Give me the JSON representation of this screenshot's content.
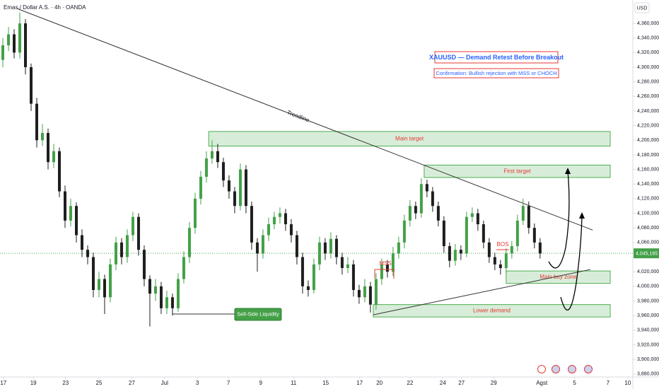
{
  "chart_data": {
    "type": "candlestick",
    "symbol": "Emas / Dollar A.S. · 4h · OANDA",
    "currency": "USD",
    "title": "XAUUSD — Demand Retest Before Breakout",
    "subtitle": "Confirmation: Bullish rejection with MSS or CHOCH",
    "up_color": "#43a047",
    "down_color": "#1e1e1e",
    "open": [
      4310000,
      4330000,
      4345000,
      4320000,
      4360000,
      4300000,
      4250000,
      4200000,
      4210000,
      4170000,
      4185000,
      4130000,
      4090000,
      4110000,
      4070000,
      4050000,
      4040000,
      3995000,
      4010000,
      3985000,
      4030000,
      4060000,
      4040000,
      4070000,
      4095000,
      4050000,
      4010000,
      3990000,
      4000000,
      3970000,
      3985000,
      3970000,
      4010000,
      4040000,
      4080000,
      4120000,
      4150000,
      4175000,
      4185000,
      4170000,
      4145000,
      4130000,
      4110000,
      4160000,
      4110000,
      4060000,
      4045000,
      4070000,
      4085000,
      4095000,
      4100000,
      4085000,
      4070000,
      4040000,
      4000000,
      3995000,
      4030000,
      4060000,
      4045000,
      4065000,
      4040000,
      4025000,
      4030000,
      3995000,
      3985000,
      4000000,
      3975000,
      4010000,
      4030000,
      4020000,
      4045000,
      4060000,
      4090000,
      4110000,
      4100000,
      4140000,
      4130000,
      4110000,
      4090000,
      4055000,
      4035000,
      4050000,
      4045000,
      4095000,
      4100000,
      4085000,
      4060000,
      4040000,
      4030000,
      4025000,
      4045000,
      4055000,
      4090000,
      4110000,
      4080000,
      4060000
    ],
    "high": [
      4340000,
      4355000,
      4352000,
      4375000,
      4366000,
      4305000,
      4258000,
      4222000,
      4216000,
      4195000,
      4190000,
      4138000,
      4120000,
      4115000,
      4078000,
      4056000,
      4046000,
      4020000,
      4016000,
      4038000,
      4068000,
      4066000,
      4078000,
      4102000,
      4100000,
      4056000,
      4015000,
      4010000,
      4006000,
      3994000,
      3990000,
      4018000,
      4048000,
      4088000,
      4128000,
      4158000,
      4185000,
      4200000,
      4195000,
      4176000,
      4152000,
      4136000,
      4168000,
      4166000,
      4116000,
      4066000,
      4078000,
      4094000,
      4102000,
      4108000,
      4106000,
      4092000,
      4076000,
      4046000,
      4008000,
      4038000,
      4068000,
      4066000,
      4074000,
      4070000,
      4046000,
      4040000,
      4036000,
      4002000,
      4010000,
      4006000,
      4018000,
      4038000,
      4036000,
      4054000,
      4068000,
      4098000,
      4118000,
      4116000,
      4148000,
      4146000,
      4136000,
      4116000,
      4096000,
      4060000,
      4058000,
      4056000,
      4102000,
      4108000,
      4106000,
      4090000,
      4066000,
      4046000,
      4036000,
      4052000,
      4062000,
      4098000,
      4120000,
      4116000,
      4086000,
      4066000
    ],
    "low": [
      4300000,
      4322000,
      4312000,
      4312000,
      4290000,
      4240000,
      4190000,
      4192000,
      4160000,
      4162000,
      4122000,
      4080000,
      4082000,
      4060000,
      4040000,
      4030000,
      3985000,
      3985000,
      3962000,
      3978000,
      4022000,
      4030000,
      4032000,
      4062000,
      4042000,
      4000000,
      3945000,
      3980000,
      3962000,
      3962000,
      3960000,
      3965000,
      4004000,
      4032000,
      4072000,
      4112000,
      4142000,
      4168000,
      4162000,
      4136000,
      4120000,
      4100000,
      4104000,
      4100000,
      4050000,
      4020000,
      4038000,
      4062000,
      4078000,
      4086000,
      4076000,
      4060000,
      4030000,
      3990000,
      3986000,
      3990000,
      4022000,
      4036000,
      4038000,
      4030000,
      4016000,
      4018000,
      3986000,
      3976000,
      3978000,
      3964000,
      3968000,
      4002000,
      4012000,
      4014000,
      4038000,
      4052000,
      4082000,
      4092000,
      4094000,
      4122000,
      4102000,
      4082000,
      4046000,
      4026000,
      4028000,
      4036000,
      4040000,
      4088000,
      4076000,
      4052000,
      4032000,
      4022000,
      4016000,
      4018000,
      4038000,
      4048000,
      4084000,
      4072000,
      4052000,
      4038000
    ],
    "close": [
      4330000,
      4345000,
      4320000,
      4360000,
      4300000,
      4250000,
      4200000,
      4210000,
      4170000,
      4185000,
      4130000,
      4090000,
      4110000,
      4070000,
      4050000,
      4040000,
      3995000,
      4010000,
      3985000,
      4030000,
      4060000,
      4040000,
      4070000,
      4095000,
      4050000,
      4010000,
      3990000,
      4000000,
      3970000,
      3985000,
      3970000,
      4010000,
      4040000,
      4080000,
      4120000,
      4150000,
      4175000,
      4185000,
      4170000,
      4145000,
      4130000,
      4110000,
      4160000,
      4110000,
      4060000,
      4045000,
      4070000,
      4085000,
      4095000,
      4100000,
      4085000,
      4070000,
      4040000,
      4000000,
      3995000,
      4030000,
      4060000,
      4045000,
      4065000,
      4040000,
      4025000,
      4030000,
      3995000,
      3985000,
      4000000,
      3975000,
      4010000,
      4030000,
      4020000,
      4045000,
      4060000,
      4090000,
      4110000,
      4100000,
      4140000,
      4130000,
      4110000,
      4090000,
      4055000,
      4035000,
      4050000,
      4045000,
      4095000,
      4100000,
      4085000,
      4060000,
      4040000,
      4030000,
      4025000,
      4045000,
      4055000,
      4090000,
      4110000,
      4080000,
      4060000,
      4045000
    ],
    "xlim": [
      -0.5,
      111.4
    ],
    "xticks": [
      {
        "value": 0.1,
        "label": "17"
      },
      {
        "value": 5.4,
        "label": "19"
      },
      {
        "value": 11.1,
        "label": "23"
      },
      {
        "value": 17,
        "label": "25"
      },
      {
        "value": 22.8,
        "label": "27"
      },
      {
        "value": 28.6,
        "label": "Jul"
      },
      {
        "value": 34.4,
        "label": "3"
      },
      {
        "value": 39.9,
        "label": "7"
      },
      {
        "value": 45.6,
        "label": "9"
      },
      {
        "value": 51.4,
        "label": "11"
      },
      {
        "value": 57.1,
        "label": "15"
      },
      {
        "value": 63.1,
        "label": "17"
      },
      {
        "value": 66.6,
        "label": "20"
      },
      {
        "value": 72,
        "label": "22"
      },
      {
        "value": 77.8,
        "label": "24"
      },
      {
        "value": 81.1,
        "label": "27"
      },
      {
        "value": 86.8,
        "label": "29"
      },
      {
        "value": 95.3,
        "label": "Agst"
      },
      {
        "value": 101.1,
        "label": "5"
      },
      {
        "value": 107,
        "label": "7"
      },
      {
        "value": 110.5,
        "label": "10"
      }
    ],
    "ylim": [
      3872000,
      4392000
    ],
    "yticks": [
      {
        "value": 4360000,
        "label": "4,360,000"
      },
      {
        "value": 4340000,
        "label": "4,340,000"
      },
      {
        "value": 4320000,
        "label": "4,320,000"
      },
      {
        "value": 4300000,
        "label": "4,300,000"
      },
      {
        "value": 4280000,
        "label": "4,280,000"
      },
      {
        "value": 4260000,
        "label": "4,260,000"
      },
      {
        "value": 4240000,
        "label": "4,240,000"
      },
      {
        "value": 4220000,
        "label": "4,220,000"
      },
      {
        "value": 4200000,
        "label": "4,200,000"
      },
      {
        "value": 4180000,
        "label": "4,180,000"
      },
      {
        "value": 4160000,
        "label": "4,160,000"
      },
      {
        "value": 4140000,
        "label": "4,140,000"
      },
      {
        "value": 4120000,
        "label": "4,120,000"
      },
      {
        "value": 4100000,
        "label": "4,100,000"
      },
      {
        "value": 4080000,
        "label": "4,080,000"
      },
      {
        "value": 4060000,
        "label": "4,060,000"
      },
      {
        "value": 4020000,
        "label": "4,020,000"
      },
      {
        "value": 4000000,
        "label": "4,000,000"
      },
      {
        "value": 3980000,
        "label": "3,980,000"
      },
      {
        "value": 3960000,
        "label": "3,960,000"
      },
      {
        "value": 3940000,
        "label": "3,940,000"
      },
      {
        "value": 3920000,
        "label": "3,920,000"
      },
      {
        "value": 3900000,
        "label": "3,900,000"
      },
      {
        "value": 3880000,
        "label": "3,880,000"
      }
    ],
    "last_price": {
      "value": 4045165,
      "label": "4,045,165"
    },
    "zones": [
      {
        "label": "Main target",
        "top": 4212000,
        "bottom": 4192000,
        "start": 36.4,
        "end": 107.4
      },
      {
        "label": "First target",
        "top": 4166000,
        "bottom": 4149000,
        "start": 74.5,
        "end": 107.4
      },
      {
        "label": "Main buy zone",
        "top": 4021000,
        "bottom": 4004000,
        "start": 89,
        "end": 107.4
      },
      {
        "label": "Lower demand",
        "top": 3975000,
        "bottom": 3958000,
        "start": 65.5,
        "end": 107.4
      }
    ],
    "trendline": {
      "label": "Trendline",
      "start": [
        2.6,
        4380000
      ],
      "end": [
        104.3,
        4077000
      ]
    },
    "support_line": {
      "start": [
        65.5,
        3961000
      ],
      "end": [
        103.9,
        4023000
      ]
    },
    "sell_side_liquidity": {
      "label": "Sell-Side Liquidity",
      "price": 3962000,
      "start": 30,
      "end": 41
    },
    "mss_label": "MSS",
    "bos_label": "BOS"
  }
}
